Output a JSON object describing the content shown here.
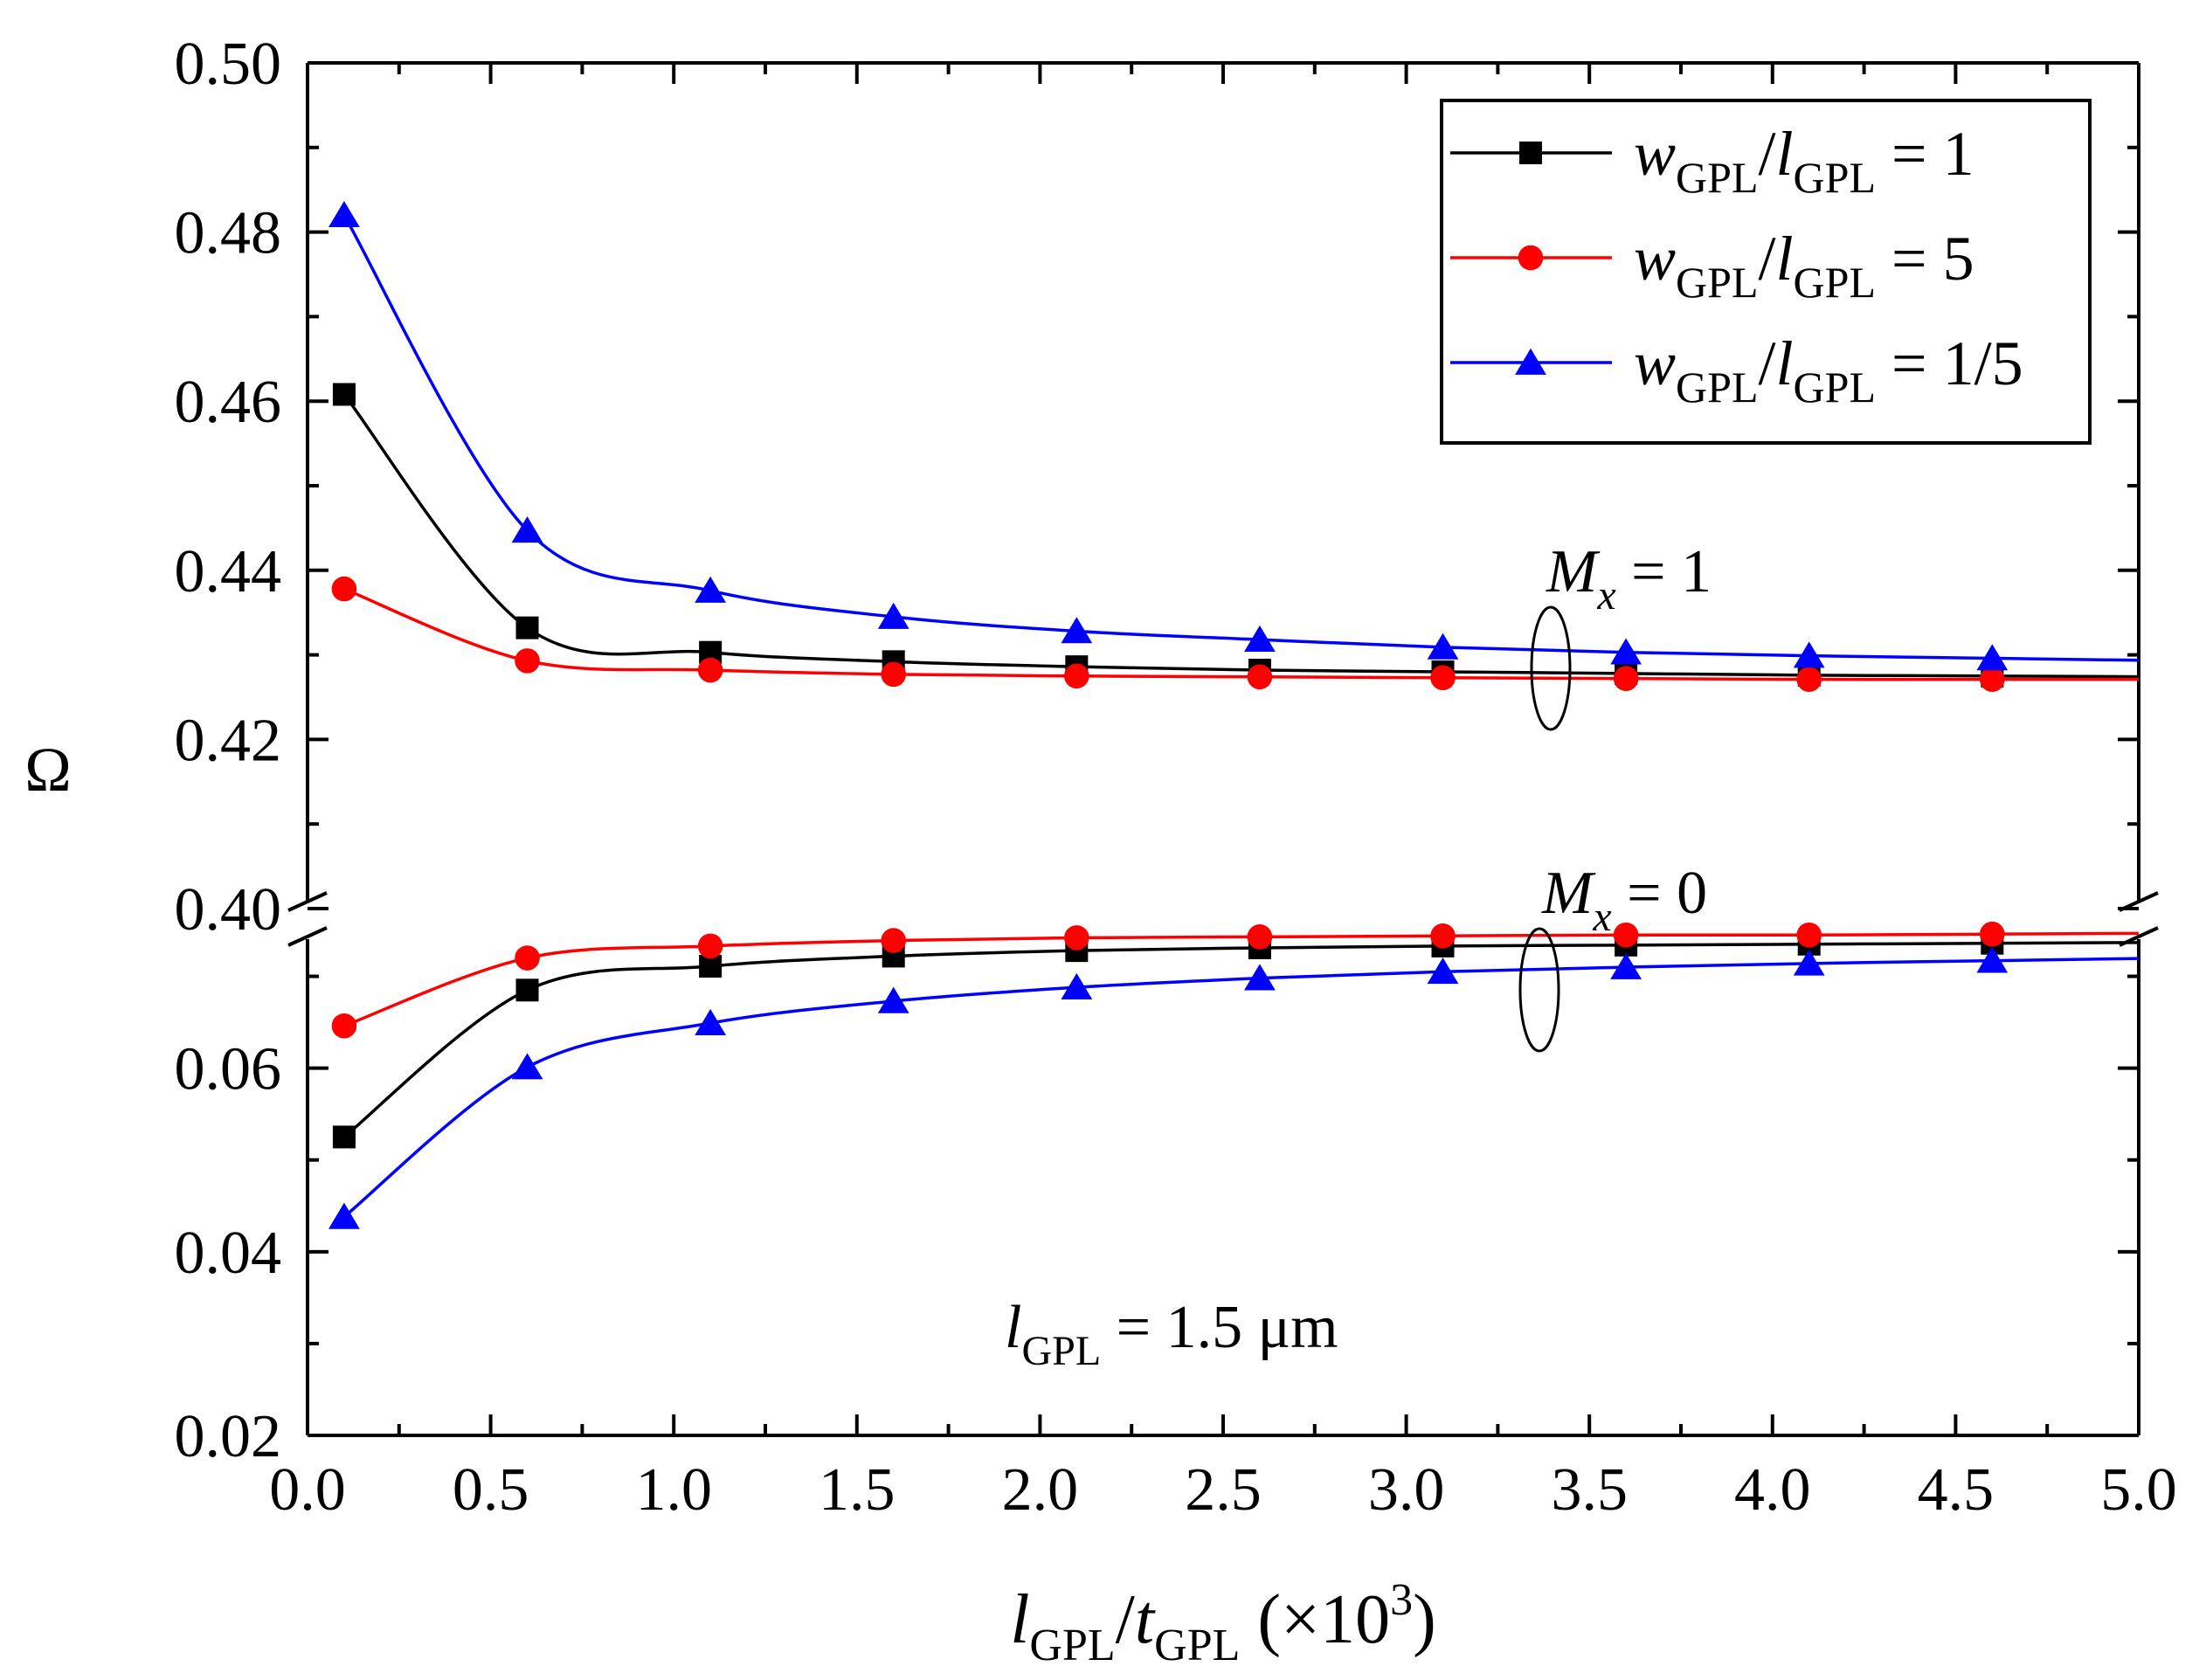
{
  "chart_data": {
    "type": "line",
    "title": "",
    "xlabel": {
      "main": "l",
      "sub": "GPL",
      "mid": "/t",
      "sub2": "GPL",
      "tail": " (×10",
      "sup": "3",
      "close": ")"
    },
    "ylabel": "Ω",
    "xlim": [
      0.0,
      5.0
    ],
    "x_ticks": [
      "0.0",
      "0.5",
      "1.0",
      "1.5",
      "2.0",
      "2.5",
      "3.0",
      "3.5",
      "4.0",
      "4.5",
      "5.0"
    ],
    "ylim_upper": [
      0.4,
      0.5
    ],
    "ylim_lower": [
      0.02,
      0.075
    ],
    "y_ticks_upper": [
      "0.40",
      "0.42",
      "0.44",
      "0.46",
      "0.48",
      "0.50"
    ],
    "y_ticks_lower": [
      "0.02",
      "0.04",
      "0.06"
    ],
    "axis_break": "broken y-axis between 0.075 and 0.40",
    "x": [
      0.1,
      0.6,
      1.1,
      1.6,
      2.1,
      2.6,
      3.1,
      3.6,
      4.1,
      4.6
    ],
    "series": [
      {
        "name": "wGPL/lGPL = 1",
        "ratio": "1",
        "color": "#000000",
        "marker": "square",
        "group": "Mx = 1",
        "values": [
          0.4608,
          0.4332,
          0.4303,
          0.4292,
          0.4286,
          0.4282,
          0.428,
          0.4278,
          0.4276,
          0.4275
        ]
      },
      {
        "name": "wGPL/lGPL = 5",
        "ratio": "5",
        "color": "#ff0000",
        "marker": "circle",
        "group": "Mx = 1",
        "values": [
          0.4378,
          0.4293,
          0.4282,
          0.4277,
          0.4275,
          0.4274,
          0.4273,
          0.4272,
          0.4271,
          0.4271
        ]
      },
      {
        "name": "wGPL/lGPL = 1/5",
        "ratio": "1/5",
        "color": "#0000ff",
        "marker": "triangle",
        "group": "Mx = 1",
        "values": [
          0.482,
          0.4447,
          0.4376,
          0.4345,
          0.4328,
          0.4318,
          0.4309,
          0.4303,
          0.4299,
          0.4296
        ]
      },
      {
        "name": "wGPL/lGPL = 1",
        "ratio": "1",
        "color": "#000000",
        "marker": "square",
        "group": "Mx = 0",
        "values": [
          0.0525,
          0.0685,
          0.0711,
          0.0722,
          0.0728,
          0.0731,
          0.0733,
          0.0734,
          0.0735,
          0.0736
        ]
      },
      {
        "name": "wGPL/lGPL = 5",
        "ratio": "5",
        "color": "#ff0000",
        "marker": "circle",
        "group": "Mx = 0",
        "values": [
          0.0646,
          0.072,
          0.0733,
          0.0739,
          0.0742,
          0.0743,
          0.0744,
          0.0745,
          0.0745,
          0.0746
        ]
      },
      {
        "name": "wGPL/lGPL = 1/5",
        "ratio": "1/5",
        "color": "#0000ff",
        "marker": "triangle",
        "group": "Mx = 0",
        "values": [
          0.0438,
          0.0601,
          0.0649,
          0.0673,
          0.0688,
          0.0698,
          0.0705,
          0.071,
          0.0714,
          0.0717
        ]
      }
    ],
    "legend": [
      {
        "w": "w",
        "wsub": "GPL",
        "l": "/l",
        "lsub": "GPL",
        "eq": " = 1",
        "color": "#000000",
        "marker": "square"
      },
      {
        "w": "w",
        "wsub": "GPL",
        "l": "/l",
        "lsub": "GPL",
        "eq": " = 5",
        "color": "#ff0000",
        "marker": "circle"
      },
      {
        "w": "w",
        "wsub": "GPL",
        "l": "/l",
        "lsub": "GPL",
        "eq": " = 1/5",
        "color": "#0000ff",
        "marker": "triangle"
      }
    ],
    "legend_position": "top-right",
    "annotations": {
      "mx1": {
        "M": "M",
        "sub": "x",
        "eq": " = 1"
      },
      "mx0": {
        "M": "M",
        "sub": "x",
        "eq": " = 0"
      },
      "lgpl": {
        "l": "l",
        "sub": "GPL",
        "eq": " = 1.5 μm"
      }
    }
  }
}
